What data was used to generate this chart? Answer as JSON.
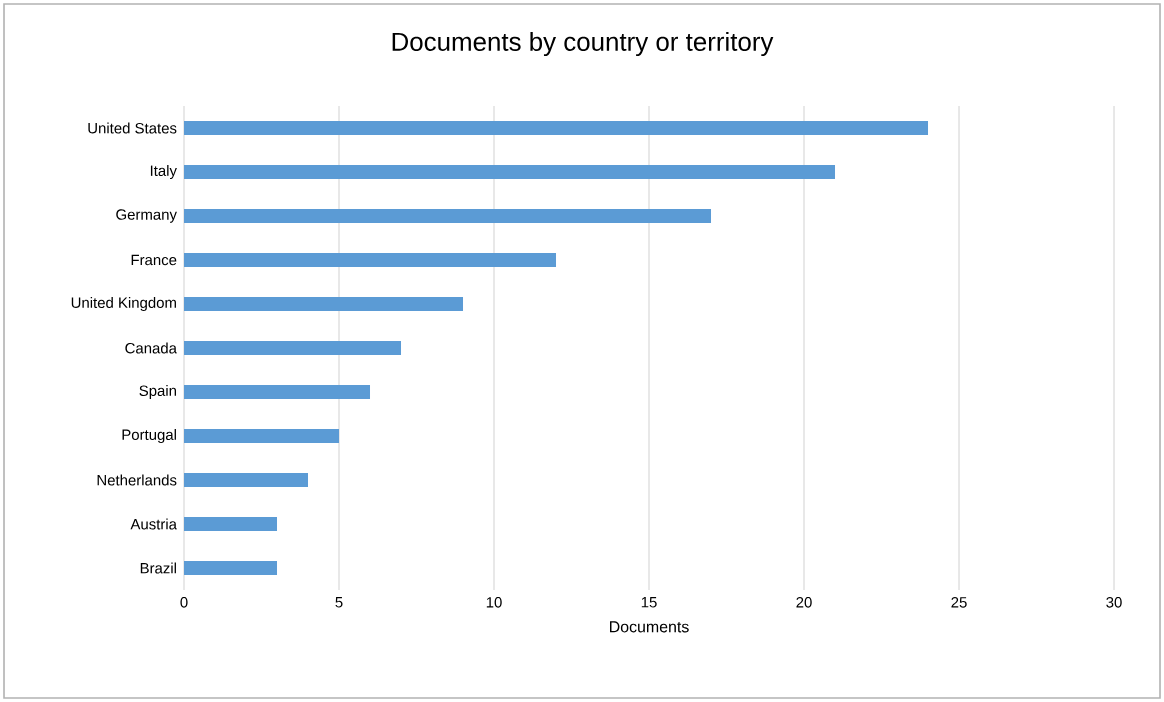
{
  "chart_data": {
    "type": "bar",
    "orientation": "horizontal",
    "title": "Documents by country or territory",
    "xlabel": "Documents",
    "categories": [
      "United States",
      "Italy",
      "Germany",
      "France",
      "United Kingdom",
      "Canada",
      "Spain",
      "Portugal",
      "Netherlands",
      "Austria",
      "Brazil"
    ],
    "values": [
      24,
      21,
      17,
      12,
      9,
      7,
      6,
      5,
      4,
      3,
      3
    ],
    "color": "#5b9bd5",
    "xlim": [
      0,
      30
    ],
    "xticks": [
      0,
      5,
      10,
      15,
      20,
      25,
      30
    ],
    "grid": "x"
  }
}
